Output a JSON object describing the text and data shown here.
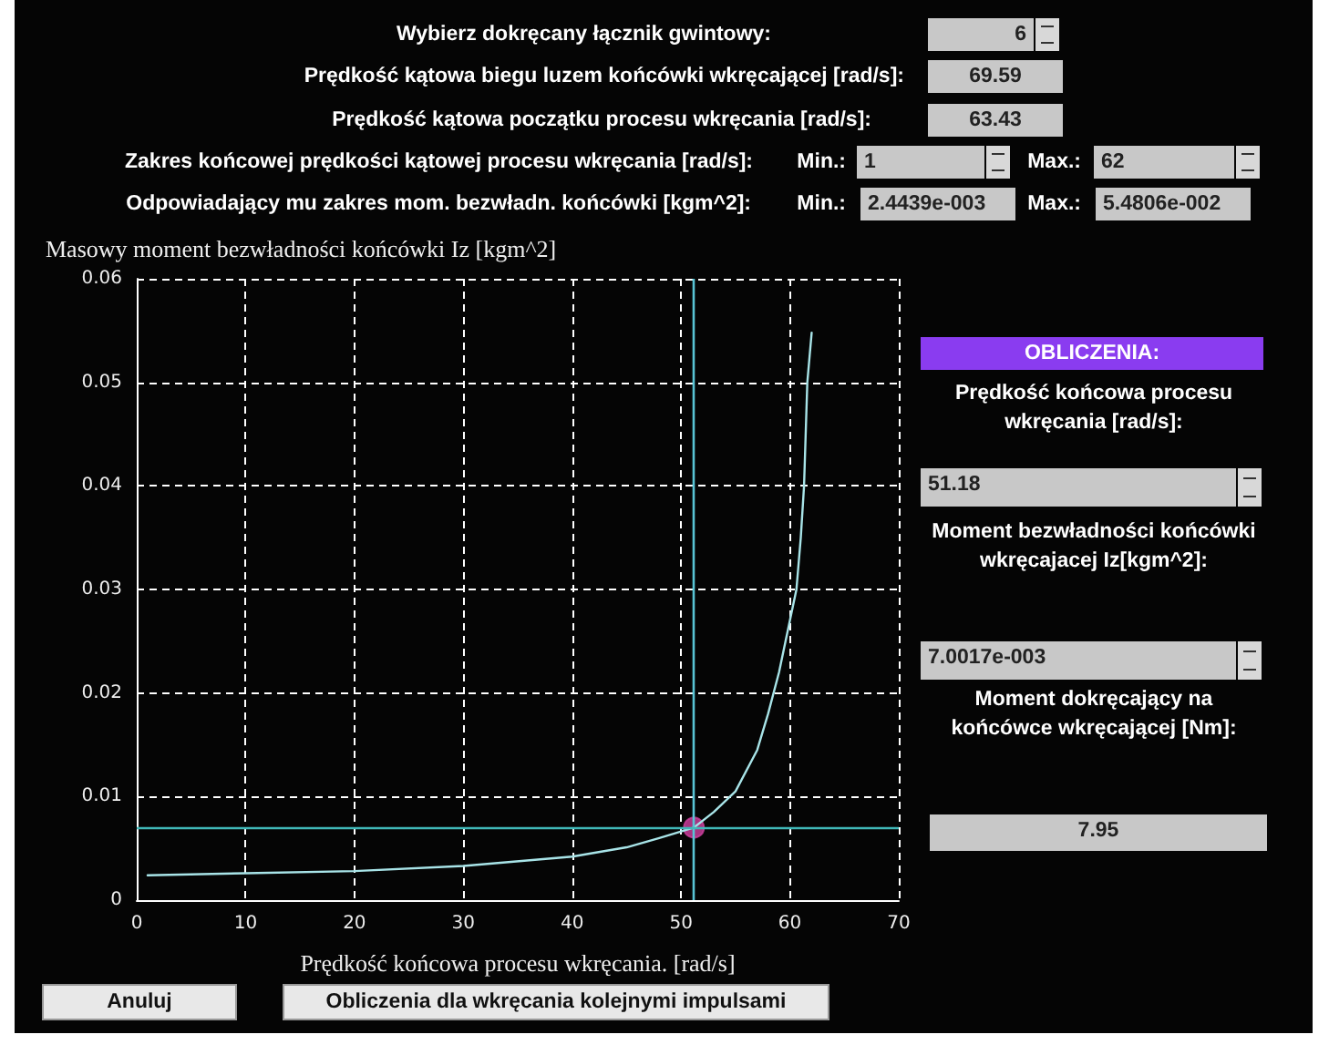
{
  "chart_data": {
    "type": "line",
    "xlabel": "Prędkość końcowa procesu wkręcania. [rad/s]",
    "ylabel": "Masowy moment bezwładności końcówki Iz [kgm^2]",
    "xlim": [
      0,
      70
    ],
    "xticks": [
      0,
      10,
      20,
      30,
      40,
      50,
      60,
      70
    ],
    "ylim": [
      0,
      0.06
    ],
    "yticks": [
      0,
      0.01,
      0.02,
      0.03,
      0.04,
      0.05,
      0.06
    ],
    "grid": true,
    "marker": "none",
    "line_style": "solid",
    "series": [
      {
        "color": "#a8e4e8",
        "x": [
          1,
          10,
          20,
          30,
          40,
          45,
          48,
          51.18,
          53,
          55,
          57,
          58,
          59,
          60,
          60.6,
          61,
          61.3,
          61.6,
          62
        ],
        "values": [
          0.0024,
          0.0026,
          0.0028,
          0.0033,
          0.0042,
          0.0051,
          0.006,
          0.007,
          0.0085,
          0.0105,
          0.0145,
          0.018,
          0.022,
          0.027,
          0.03,
          0.035,
          0.04,
          0.05,
          0.0548
        ]
      },
      {
        "type": "scatter",
        "marker": "circle",
        "color": "#d040a0",
        "x": [
          51.18
        ],
        "values": [
          0.007
        ]
      }
    ],
    "ref_lines": [
      {
        "axis": "x",
        "value": 51.18,
        "color": "#58c4d4"
      },
      {
        "axis": "y",
        "value": 0.007,
        "color": "#40b8b8"
      }
    ],
    "annotations": [
      "Wybierz dokręcany łącznik gwintowy:",
      "6",
      "Prędkość kątowa biegu luzem końcówki wkręcającej [rad/s]:",
      "69.59",
      "Prędkość kątowa początku procesu wkręcania [rad/s]:",
      "63.43",
      "Zakres końcowej prędkości kątowej procesu wkręcania [rad/s]:",
      "Min.:",
      "1",
      "Max.:",
      "62",
      "Odpowiadający mu zakres mom. bezwładn. końcówki [kgm^2]:",
      "Min.:",
      "2.4439e-003",
      "Max.:",
      "5.4806e-002",
      "OBLICZENIA:",
      "Prędkość końcowa procesu wkręcania [rad/s]:",
      "51.18",
      "Moment bezwładności końcówki wkręcajacej Iz[kgm^2]:",
      "7.0017e-003",
      "Moment dokręcający na końcówce wkręcającej [Nm]:",
      "7.95",
      "Anuluj",
      "Obliczenia dla wkręcania kolejnymi impulsami"
    ]
  }
}
